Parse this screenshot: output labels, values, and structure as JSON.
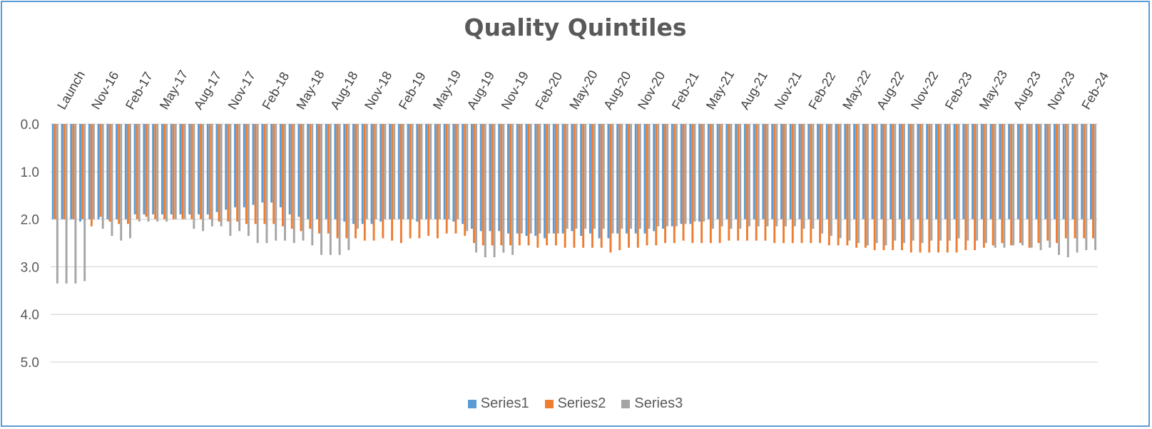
{
  "chart_data": {
    "type": "bar",
    "title": "Quality Quintiles",
    "xlabel": "",
    "ylabel": "",
    "ylim": [
      0,
      5.5
    ],
    "y_axis_reversed": true,
    "y_ticks": [
      "0.0",
      "1.0",
      "2.0",
      "3.0",
      "4.0",
      "5.0"
    ],
    "grid": true,
    "legend_position": "bottom",
    "x_tick_labels": [
      "Launch",
      "Nov-16",
      "Feb-17",
      "May-17",
      "Aug-17",
      "Nov-17",
      "Feb-18",
      "May-18",
      "Aug-18",
      "Nov-18",
      "Feb-19",
      "May-19",
      "Aug-19",
      "Nov-19",
      "Feb-20",
      "May-20",
      "Aug-20",
      "Nov-20",
      "Feb-21",
      "May-21",
      "Aug-21",
      "Nov-21",
      "Feb-22",
      "May-22",
      "Aug-22",
      "Nov-22",
      "Feb-23",
      "May-23",
      "Aug-23",
      "Nov-23",
      "Feb-24"
    ],
    "series": [
      {
        "name": "Series1",
        "color": "#5b9bd5",
        "values": [
          2.0,
          2.0,
          2.0,
          2.05,
          2.0,
          2.0,
          2.0,
          2.0,
          2.0,
          1.9,
          1.9,
          1.9,
          1.9,
          1.9,
          1.9,
          1.9,
          1.9,
          1.9,
          1.85,
          1.8,
          1.75,
          1.75,
          1.7,
          1.65,
          1.65,
          1.75,
          1.9,
          1.95,
          2.0,
          2.0,
          2.0,
          2.0,
          2.05,
          2.1,
          2.1,
          2.1,
          2.05,
          2.0,
          2.0,
          2.0,
          2.05,
          2.0,
          2.0,
          2.0,
          2.05,
          2.1,
          2.2,
          2.25,
          2.25,
          2.25,
          2.3,
          2.3,
          2.35,
          2.35,
          2.4,
          2.3,
          2.3,
          2.25,
          2.35,
          2.3,
          2.4,
          2.4,
          2.3,
          2.3,
          2.3,
          2.3,
          2.25,
          2.2,
          2.15,
          2.1,
          2.1,
          2.05,
          2.0,
          2.0,
          2.0,
          2.0,
          2.0,
          2.0,
          2.0,
          2.0,
          2.0,
          2.0,
          2.0,
          2.0,
          2.0,
          2.0,
          2.0,
          2.0,
          2.0,
          2.0,
          2.0,
          2.0,
          2.0,
          2.0,
          2.0,
          2.0,
          2.0,
          2.0,
          2.0,
          2.0,
          2.0,
          2.0,
          2.0,
          2.0,
          2.0,
          2.0,
          2.0,
          2.0,
          2.0,
          2.0,
          2.0,
          2.0,
          2.0,
          2.0,
          2.0
        ]
      },
      {
        "name": "Series2",
        "color": "#ed7d31",
        "values": [
          2.0,
          2.0,
          2.0,
          2.0,
          2.15,
          1.95,
          2.05,
          2.1,
          2.1,
          2.0,
          1.95,
          2.0,
          2.0,
          2.0,
          2.0,
          2.0,
          2.0,
          2.0,
          2.05,
          2.05,
          2.05,
          2.1,
          2.1,
          2.1,
          2.1,
          2.15,
          2.2,
          2.25,
          2.2,
          2.3,
          2.3,
          2.4,
          2.4,
          2.4,
          2.45,
          2.45,
          2.4,
          2.45,
          2.5,
          2.4,
          2.4,
          2.35,
          2.4,
          2.3,
          2.3,
          2.35,
          2.5,
          2.55,
          2.55,
          2.55,
          2.55,
          2.55,
          2.55,
          2.6,
          2.55,
          2.55,
          2.6,
          2.6,
          2.6,
          2.6,
          2.6,
          2.7,
          2.65,
          2.6,
          2.6,
          2.55,
          2.55,
          2.5,
          2.5,
          2.45,
          2.5,
          2.5,
          2.5,
          2.5,
          2.45,
          2.45,
          2.45,
          2.45,
          2.45,
          2.5,
          2.5,
          2.5,
          2.5,
          2.5,
          2.5,
          2.55,
          2.55,
          2.55,
          2.6,
          2.6,
          2.65,
          2.65,
          2.65,
          2.65,
          2.7,
          2.7,
          2.7,
          2.7,
          2.7,
          2.7,
          2.65,
          2.65,
          2.6,
          2.55,
          2.5,
          2.55,
          2.5,
          2.6,
          2.5,
          2.45,
          2.5,
          2.4,
          2.4,
          2.4,
          2.4
        ]
      },
      {
        "name": "Series3",
        "color": "#a5a5a5",
        "values": [
          3.35,
          3.35,
          3.35,
          3.3,
          2.0,
          2.2,
          2.35,
          2.45,
          2.4,
          2.05,
          2.05,
          2.05,
          2.05,
          2.0,
          2.0,
          2.2,
          2.25,
          2.15,
          2.15,
          2.35,
          2.25,
          2.35,
          2.5,
          2.5,
          2.45,
          2.45,
          2.5,
          2.45,
          2.55,
          2.75,
          2.75,
          2.75,
          2.65,
          2.2,
          2.0,
          2.0,
          2.0,
          2.0,
          2.0,
          2.0,
          2.0,
          2.0,
          2.0,
          2.0,
          2.0,
          2.25,
          2.7,
          2.8,
          2.8,
          2.7,
          2.75,
          2.3,
          2.3,
          2.3,
          2.3,
          2.3,
          2.2,
          2.2,
          2.2,
          2.2,
          2.2,
          2.3,
          2.2,
          2.2,
          2.2,
          2.2,
          2.15,
          2.15,
          2.15,
          2.1,
          2.05,
          2.05,
          2.2,
          2.15,
          2.2,
          2.2,
          2.15,
          2.15,
          2.15,
          2.15,
          2.15,
          2.15,
          2.2,
          2.2,
          2.3,
          2.35,
          2.4,
          2.45,
          2.5,
          2.55,
          2.5,
          2.55,
          2.45,
          2.5,
          2.45,
          2.5,
          2.45,
          2.45,
          2.45,
          2.4,
          2.45,
          2.45,
          2.5,
          2.6,
          2.6,
          2.55,
          2.55,
          2.6,
          2.65,
          2.6,
          2.75,
          2.8,
          2.7,
          2.65,
          2.65
        ]
      }
    ]
  }
}
